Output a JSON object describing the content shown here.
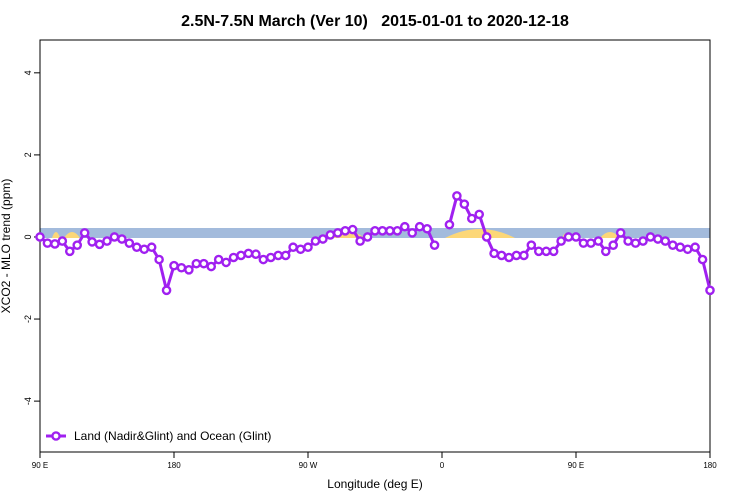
{
  "chart_data": {
    "type": "line",
    "title": "2.5N-7.5N March (Ver 10)   2015-01-01 to 2020-12-18",
    "xlabel": "Longitude (deg E)",
    "ylabel": "XCO2 - MLO trend (ppm)",
    "x": [
      90,
      95,
      100,
      105,
      110,
      115,
      120,
      125,
      130,
      135,
      140,
      145,
      150,
      155,
      160,
      165,
      170,
      175,
      180,
      185,
      190,
      195,
      200,
      205,
      210,
      215,
      220,
      225,
      230,
      235,
      240,
      245,
      250,
      255,
      260,
      265,
      270,
      275,
      280,
      285,
      290,
      295,
      300,
      305,
      310,
      315,
      320,
      325,
      330,
      335,
      340,
      345,
      350,
      355,
      360,
      365,
      370,
      375,
      380,
      385,
      390,
      395,
      400,
      405,
      410,
      415,
      420,
      425,
      430,
      435,
      440,
      445,
      450,
      455,
      460,
      465,
      470,
      475,
      480,
      485,
      490,
      495,
      500,
      505,
      510,
      515,
      520,
      525,
      530,
      535,
      540
    ],
    "series": [
      {
        "name": "Land (Nadir&Glint) and Ocean (Glint)",
        "color": "#a020f0",
        "values": [
          0.0,
          -0.15,
          -0.17,
          -0.1,
          -0.35,
          -0.2,
          0.1,
          -0.12,
          -0.18,
          -0.1,
          0.0,
          -0.05,
          -0.15,
          -0.25,
          -0.3,
          -0.25,
          -0.55,
          -1.3,
          -0.7,
          -0.75,
          -0.8,
          -0.65,
          -0.65,
          -0.72,
          -0.55,
          -0.62,
          -0.5,
          -0.45,
          -0.4,
          -0.42,
          -0.55,
          -0.5,
          -0.45,
          -0.45,
          -0.25,
          -0.3,
          -0.25,
          -0.1,
          -0.05,
          0.05,
          0.1,
          0.15,
          0.18,
          -0.1,
          0.0,
          0.15,
          0.15,
          0.15,
          0.15,
          0.25,
          0.1,
          0.25,
          0.2,
          -0.2,
          null,
          0.3,
          1.0,
          0.8,
          0.45,
          0.55,
          0.0,
          -0.4,
          -0.45,
          -0.5,
          -0.45,
          -0.45,
          -0.2,
          -0.35,
          -0.35,
          -0.35,
          -0.1,
          0.0,
          0.0,
          -0.15,
          -0.15,
          -0.1,
          -0.35,
          -0.2,
          0.1,
          -0.1,
          -0.15,
          -0.1,
          0.0,
          -0.05,
          -0.1,
          -0.2,
          -0.25,
          -0.3,
          -0.25,
          -0.55,
          -1.3
        ]
      }
    ],
    "xlim": [
      90,
      540
    ],
    "xticks": [
      {
        "value": 90,
        "label": "90 E"
      },
      180,
      {
        "value": 270,
        "label": "90 W"
      },
      {
        "value": 360,
        "label": "0"
      },
      {
        "value": 450,
        "label": "90 E"
      },
      {
        "value": 540,
        "label": "180"
      }
    ],
    "ylim": [
      -5.24,
      4.8
    ],
    "yticks": [
      -4,
      -2,
      0,
      2,
      4
    ],
    "legend": "bottomleft"
  }
}
